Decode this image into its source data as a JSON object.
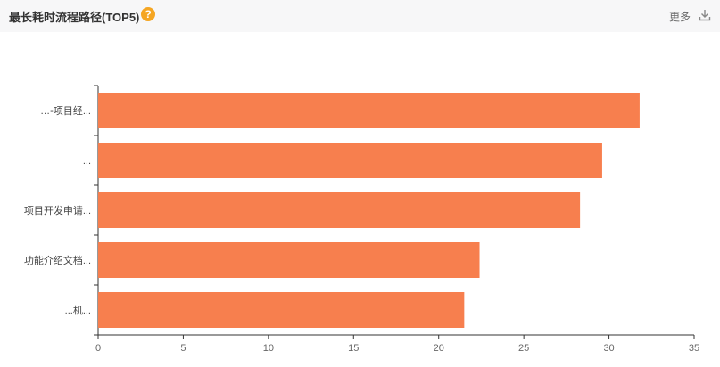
{
  "header": {
    "title": "最长耗时流程路径(TOP5)",
    "help_icon": "help-icon",
    "more_label": "更多",
    "download_icon": "download-icon"
  },
  "colors": {
    "bar": "#f77f4e",
    "help": "#f5a623",
    "header_bg": "#f7f7f8"
  },
  "chart_data": {
    "type": "bar",
    "orientation": "horizontal",
    "categories": [
      "…-项目经...",
      "...",
      "项目开发申请...",
      "功能介绍文档...",
      "...机..."
    ],
    "values": [
      31.8,
      29.6,
      28.3,
      22.4,
      21.5
    ],
    "xlim": [
      0,
      35
    ],
    "xticks": [
      0,
      5,
      10,
      15,
      20,
      25,
      30,
      35
    ],
    "grid": false,
    "legend": "none"
  }
}
